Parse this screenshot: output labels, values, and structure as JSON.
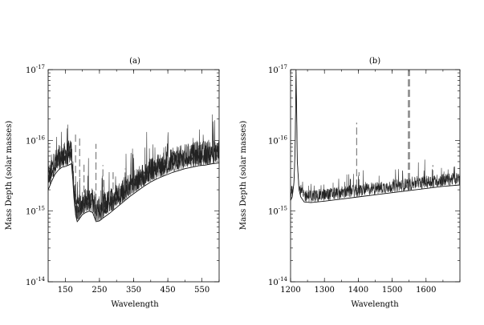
{
  "chart_data": [
    {
      "type": "line",
      "panel_label": "(a)",
      "xlabel": "Wavelength",
      "ylabel": "Mass Depth (solar masses)",
      "yscale": "log",
      "ylim_exp": [
        -14,
        -17
      ],
      "xlim": [
        100,
        600
      ],
      "xticks": [
        150,
        250,
        350,
        450,
        550
      ],
      "yticks": [
        "10^-14",
        "10^-15",
        "10^-16",
        "10^-17"
      ],
      "series": [
        {
          "x": [
            100,
            110,
            120,
            130,
            140,
            150,
            160,
            168,
            172,
            175,
            180,
            185,
            190,
            200,
            210,
            220,
            230,
            240,
            250,
            260,
            280,
            300,
            320,
            340,
            360,
            380,
            400,
            420,
            440,
            460,
            480,
            500,
            520,
            540,
            560,
            580,
            600
          ],
          "y": [
            -15.3,
            -15.42,
            -15.52,
            -15.58,
            -15.62,
            -15.63,
            -15.65,
            -15.67,
            -15.45,
            -15.2,
            -14.95,
            -14.85,
            -14.88,
            -14.95,
            -14.98,
            -15.0,
            -14.98,
            -14.85,
            -14.86,
            -14.9,
            -14.97,
            -15.05,
            -15.13,
            -15.21,
            -15.28,
            -15.35,
            -15.41,
            -15.46,
            -15.5,
            -15.54,
            -15.57,
            -15.6,
            -15.62,
            -15.64,
            -15.65,
            -15.67,
            -15.68
          ]
        }
      ],
      "peaks": [
        {
          "x": 180,
          "y": -16.1
        },
        {
          "x": 192,
          "y": -16.05
        },
        {
          "x": 205,
          "y": -15.7
        },
        {
          "x": 240,
          "y": -15.95
        },
        {
          "x": 260,
          "y": -15.65
        },
        {
          "x": 290,
          "y": -15.55
        },
        {
          "x": 325,
          "y": -15.6
        },
        {
          "x": 400,
          "y": -15.55
        },
        {
          "x": 470,
          "y": -15.6
        },
        {
          "x": 540,
          "y": -15.9
        },
        {
          "x": 575,
          "y": -15.8
        }
      ]
    },
    {
      "type": "line",
      "panel_label": "(b)",
      "xlabel": "Wavelength",
      "ylabel": "Mass Depth (solar masses)",
      "yscale": "log",
      "ylim_exp": [
        -14,
        -17
      ],
      "xlim": [
        1200,
        1700
      ],
      "xticks": [
        1200,
        1300,
        1400,
        1500,
        1600
      ],
      "yticks": [
        "10^-14",
        "10^-15",
        "10^-16",
        "10^-17"
      ],
      "series": [
        {
          "x": [
            1200,
            1205,
            1210,
            1213,
            1215,
            1216,
            1218,
            1220,
            1225,
            1230,
            1240,
            1260,
            1300,
            1350,
            1400,
            1450,
            1500,
            1550,
            1600,
            1650,
            1700
          ],
          "y": [
            -15.15,
            -15.2,
            -15.4,
            -15.8,
            -16.4,
            -17.0,
            -16.4,
            -15.7,
            -15.3,
            -15.2,
            -15.13,
            -15.12,
            -15.14,
            -15.17,
            -15.2,
            -15.23,
            -15.26,
            -15.29,
            -15.32,
            -15.35,
            -15.37
          ]
        }
      ],
      "peaks": [
        {
          "x": 1216,
          "y": -17.0
        },
        {
          "x": 1395,
          "y": -16.25
        },
        {
          "x": 1402,
          "y": -15.55
        },
        {
          "x": 1548,
          "y": -17.0
        },
        {
          "x": 1551,
          "y": -17.0
        },
        {
          "x": 1620,
          "y": -15.65
        }
      ]
    }
  ]
}
